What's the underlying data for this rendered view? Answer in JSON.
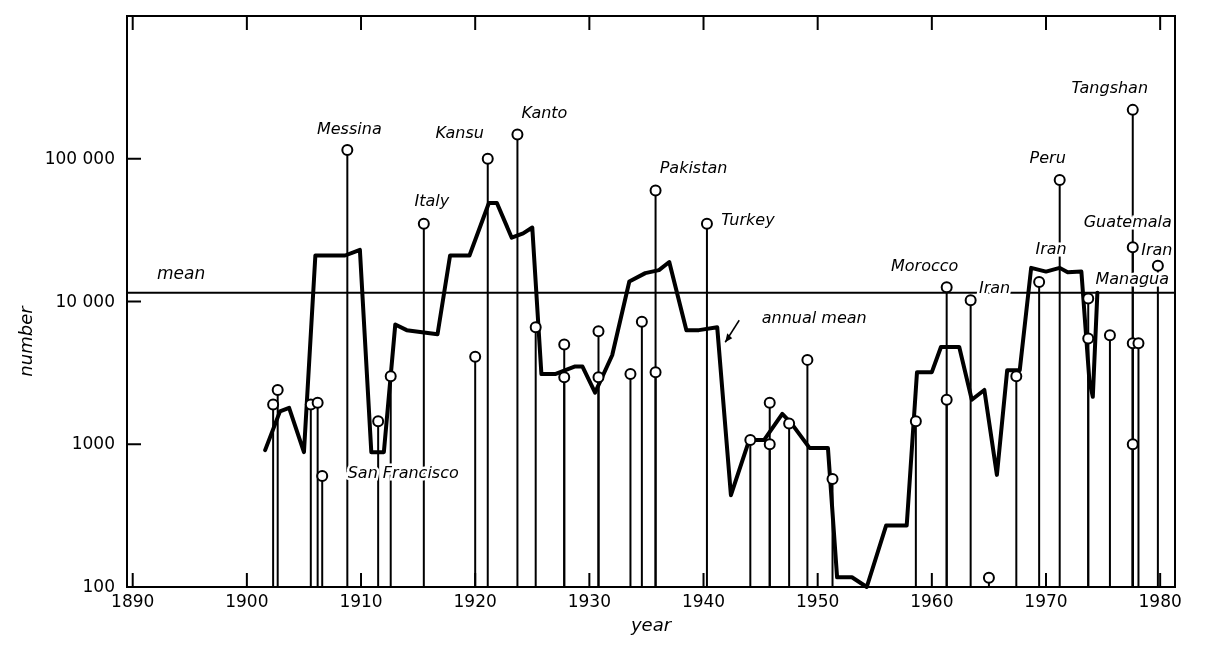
{
  "chart_data": {
    "type": "line",
    "xlabel": "year",
    "ylabel": "number",
    "log": "y",
    "xlim": [
      1889.5,
      1981.3
    ],
    "xticks": [
      1890,
      1900,
      1910,
      1920,
      1930,
      1940,
      1950,
      1960,
      1970,
      1980
    ],
    "ylim": [
      100,
      1000000
    ],
    "yticks": [
      100,
      1000,
      {
        "value": 10000,
        "label": "10 000"
      },
      {
        "value": 100000,
        "label": "100 000"
      }
    ],
    "series": [
      {
        "type": "lollipop",
        "marker": "circle",
        "color": "#000000",
        "x": [
          1902.3,
          1902.7,
          1905.6,
          1906.2,
          1906.6,
          1908.8,
          1911.5,
          1912.6,
          1915.5,
          1920,
          1921.1,
          1923.7,
          1925.3,
          1927.8,
          1927.8,
          1930.8,
          1930.8,
          1933.6,
          1934.6,
          1935.8,
          1935.8,
          1940.3,
          1944.1,
          1945.8,
          1945.8,
          1947.5,
          1949.1,
          1951.3,
          1958.6,
          1961.3,
          1961.3,
          1963.4,
          1965,
          1967.4,
          1969.4,
          1971.2,
          1973.7,
          1973.7,
          1975.6,
          1977.6,
          1978.1,
          1977.6,
          1977.6,
          1977.6,
          1979.8
        ],
        "values": [
          1900,
          2400,
          1900,
          1950,
          600,
          115000,
          1450,
          3000,
          35000,
          4100,
          100000,
          148000,
          6600,
          5000,
          2950,
          6200,
          2950,
          3100,
          7200,
          60000,
          3200,
          35000,
          1070,
          1950,
          1000,
          1400,
          3900,
          570,
          1450,
          12600,
          2050,
          10200,
          116,
          3000,
          13700,
          71000,
          10500,
          5500,
          5800,
          5100,
          5100,
          1000,
          24000,
          220000,
          17800
        ]
      },
      {
        "color": "#000000",
        "x": [
          1901.6,
          1902.9,
          1903.7,
          1905,
          1906,
          1908.6,
          1909.9,
          1910.9,
          1912,
          1913,
          1914,
          1916.7,
          1917.8,
          1919.5,
          1921.2,
          1921.9,
          1923.2,
          1924.2,
          1925,
          1925.8,
          1927,
          1928.7,
          1929.4,
          1930.5,
          1932,
          1933.5,
          1934.9,
          1936.1,
          1937,
          1938.5,
          1939.6,
          1941.2,
          1942.4,
          1944,
          1945.3,
          1946.9,
          1947.7,
          1949.3,
          1950.9,
          1951.7,
          1953,
          1954.3,
          1956,
          1957.8,
          1958.7,
          1960,
          1960.8,
          1962.4,
          1963.5,
          1964.6,
          1965.7,
          1966.6,
          1967.7,
          1968.7,
          1970,
          1971.2,
          1971.9,
          1973.1,
          1973.8,
          1974.1,
          1974.5
        ],
        "values": [
          910,
          1700,
          1800,
          880,
          21000,
          21000,
          23000,
          880,
          880,
          6900,
          6300,
          5900,
          21000,
          21000,
          49000,
          49000,
          28000,
          30000,
          33000,
          3100,
          3100,
          3500,
          3500,
          2300,
          4200,
          13800,
          15800,
          16600,
          18900,
          6300,
          6300,
          6600,
          440,
          1070,
          1070,
          1630,
          1400,
          940,
          940,
          117,
          117,
          100,
          270,
          270,
          3200,
          3200,
          4800,
          4800,
          2050,
          2400,
          610,
          3300,
          3300,
          17200,
          16200,
          17200,
          16000,
          16200,
          2800,
          2150,
          11500
        ]
      }
    ],
    "ref_lines": [
      {
        "axis": "y",
        "value": 11500,
        "label": "mean",
        "color": "#000000"
      }
    ],
    "annotations": [
      {
        "text": "Messina",
        "x": 1908.8,
        "y": 115000
      },
      {
        "text": "Italy",
        "x": 1915.5,
        "y": 35000
      },
      {
        "text": "Kansu",
        "x": 1921.1,
        "y": 100000
      },
      {
        "text": "Kanto",
        "x": 1923.7,
        "y": 148000
      },
      {
        "text": "Pakistan",
        "x": 1935.8,
        "y": 60000
      },
      {
        "text": "Turkey",
        "x": 1940.3,
        "y": 35000
      },
      {
        "text": "San Francisco",
        "x": 1906.6,
        "y": 600
      },
      {
        "text": "annual mean",
        "x": 1941.2,
        "y": 6600
      },
      {
        "text": "Morocco",
        "x": 1961.3,
        "y": 12600
      },
      {
        "text": "Iran",
        "x": 1963.4,
        "y": 10200
      },
      {
        "text": "Peru",
        "x": 1971.2,
        "y": 71000
      },
      {
        "text": "Iran",
        "x": 1969.4,
        "y": 13700
      },
      {
        "text": "Tangshan",
        "x": 1977.6,
        "y": 220000
      },
      {
        "text": "Guatemala",
        "x": 1977.6,
        "y": 24000
      },
      {
        "text": "Iran",
        "x": 1979.8,
        "y": 17800
      },
      {
        "text": "Managua",
        "x": 1973.7,
        "y": 10500
      }
    ]
  }
}
